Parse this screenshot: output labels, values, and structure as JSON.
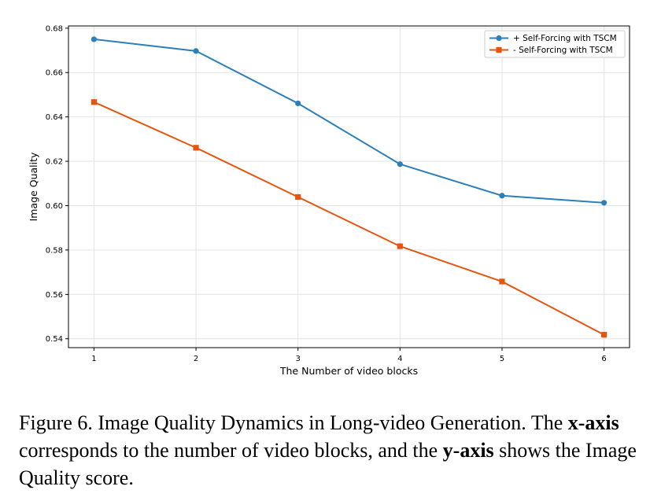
{
  "chart_data": {
    "type": "line",
    "title": "",
    "xlabel": "The Number of video blocks",
    "ylabel": "Image Quality",
    "x": [
      1,
      2,
      3,
      4,
      5,
      6
    ],
    "xticks": [
      "1",
      "2",
      "3",
      "4",
      "5",
      "6"
    ],
    "xlim": [
      0.75,
      6.25
    ],
    "ylim": [
      0.536,
      0.681
    ],
    "yticks": [
      "0.54",
      "0.56",
      "0.58",
      "0.60",
      "0.62",
      "0.64",
      "0.66",
      "0.68"
    ],
    "grid": true,
    "legend_position": "top-right",
    "series": [
      {
        "name": "+ Self-Forcing with TSCM",
        "color": "#2c7fb8",
        "marker": "circle",
        "values": [
          0.675,
          0.6697,
          0.6461,
          0.6187,
          0.6045,
          0.6013
        ]
      },
      {
        "name": "- Self-Forcing with TSCM",
        "color": "#e6550d",
        "marker": "square",
        "values": [
          0.6467,
          0.6261,
          0.6039,
          0.5817,
          0.5658,
          0.5418
        ]
      }
    ]
  },
  "caption": {
    "prefix": "Figure 6. Image Quality Dynamics in Long-video Generation. The ",
    "bold1": "x-axis",
    "middle": " corresponds to the number of video blocks, and the ",
    "bold2": "y-axis",
    "suffix": " shows the Image Quality score."
  }
}
